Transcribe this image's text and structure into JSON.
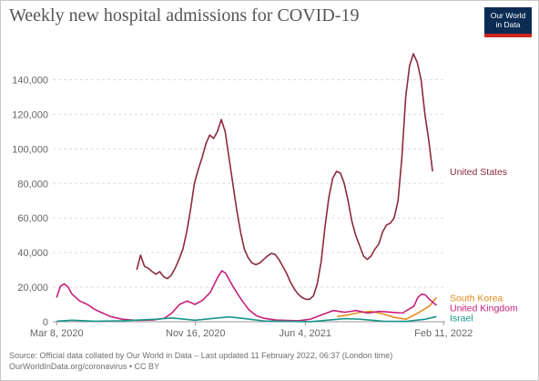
{
  "header": {
    "title": "Weekly new hospital admissions for COVID-19",
    "logo_line1": "Our World",
    "logo_line2": "in Data"
  },
  "footer": {
    "source_line1": "Source: Official data collated by Our World in Data – Last updated 11 February 2022, 06:37 (London time)",
    "source_line2": "OurWorldInData.org/coronavirus • CC BY"
  },
  "chart_data": {
    "type": "line",
    "title": "Weekly new hospital admissions for COVID-19",
    "xlabel": "",
    "ylabel": "",
    "x_range": [
      "2020-03-01",
      "2022-02-14"
    ],
    "ylim": [
      0,
      155000
    ],
    "y_ticks": [
      0,
      20000,
      40000,
      60000,
      80000,
      100000,
      120000,
      140000
    ],
    "y_tick_labels": [
      "0",
      "20,000",
      "40,000",
      "60,000",
      "80,000",
      "100,000",
      "120,000",
      "140,000"
    ],
    "x_ticks": [
      "2020-03-08",
      "2020-11-16",
      "2021-06-04",
      "2022-02-11"
    ],
    "x_tick_labels": [
      "Mar 8, 2020",
      "Nov 16, 2020",
      "Jun 4, 2021",
      "Feb 11, 2022"
    ],
    "grid": "horizontal dashed",
    "legend": "right, labels at line ends",
    "series": [
      {
        "name": "United States",
        "color": "#8c2a3e",
        "points": [
          [
            "2020-08-01",
            30000
          ],
          [
            "2020-08-08",
            38500
          ],
          [
            "2020-08-15",
            32000
          ],
          [
            "2020-08-22",
            31000
          ],
          [
            "2020-08-29",
            29000
          ],
          [
            "2020-09-05",
            27500
          ],
          [
            "2020-09-12",
            29000
          ],
          [
            "2020-09-19",
            26000
          ],
          [
            "2020-09-26",
            25000
          ],
          [
            "2020-10-03",
            27000
          ],
          [
            "2020-10-10",
            31000
          ],
          [
            "2020-10-17",
            36000
          ],
          [
            "2020-10-24",
            42000
          ],
          [
            "2020-10-31",
            52000
          ],
          [
            "2020-11-07",
            65000
          ],
          [
            "2020-11-14",
            80000
          ],
          [
            "2020-11-21",
            88000
          ],
          [
            "2020-11-28",
            95000
          ],
          [
            "2020-12-05",
            103000
          ],
          [
            "2020-12-12",
            108000
          ],
          [
            "2020-12-19",
            106000
          ],
          [
            "2020-12-26",
            110000
          ],
          [
            "2021-01-02",
            117000
          ],
          [
            "2021-01-09",
            110000
          ],
          [
            "2021-01-16",
            95000
          ],
          [
            "2021-01-23",
            80000
          ],
          [
            "2021-01-30",
            65000
          ],
          [
            "2021-02-06",
            52000
          ],
          [
            "2021-02-13",
            42000
          ],
          [
            "2021-02-20",
            37000
          ],
          [
            "2021-02-27",
            34000
          ],
          [
            "2021-03-06",
            33000
          ],
          [
            "2021-03-13",
            34000
          ],
          [
            "2021-03-20",
            36000
          ],
          [
            "2021-03-27",
            38000
          ],
          [
            "2021-04-03",
            39500
          ],
          [
            "2021-04-10",
            39000
          ],
          [
            "2021-04-17",
            36000
          ],
          [
            "2021-04-24",
            32000
          ],
          [
            "2021-05-01",
            28000
          ],
          [
            "2021-05-08",
            23000
          ],
          [
            "2021-05-15",
            19000
          ],
          [
            "2021-05-22",
            16000
          ],
          [
            "2021-05-29",
            14000
          ],
          [
            "2021-06-05",
            13000
          ],
          [
            "2021-06-12",
            13000
          ],
          [
            "2021-06-19",
            15000
          ],
          [
            "2021-06-26",
            22000
          ],
          [
            "2021-07-03",
            35000
          ],
          [
            "2021-07-10",
            55000
          ],
          [
            "2021-07-17",
            72000
          ],
          [
            "2021-07-24",
            83000
          ],
          [
            "2021-07-31",
            87000
          ],
          [
            "2021-08-07",
            86000
          ],
          [
            "2021-08-14",
            80000
          ],
          [
            "2021-08-21",
            70000
          ],
          [
            "2021-08-28",
            58000
          ],
          [
            "2021-09-04",
            50000
          ],
          [
            "2021-09-11",
            44000
          ],
          [
            "2021-09-18",
            38000
          ],
          [
            "2021-09-25",
            36000
          ],
          [
            "2021-10-02",
            38000
          ],
          [
            "2021-10-09",
            42000
          ],
          [
            "2021-10-16",
            45000
          ],
          [
            "2021-10-23",
            52000
          ],
          [
            "2021-10-30",
            56000
          ],
          [
            "2021-11-06",
            57000
          ],
          [
            "2021-11-13",
            60000
          ],
          [
            "2021-11-20",
            70000
          ],
          [
            "2021-11-27",
            95000
          ],
          [
            "2021-12-04",
            130000
          ],
          [
            "2021-12-11",
            148000
          ],
          [
            "2021-12-18",
            155000
          ],
          [
            "2021-12-25",
            150000
          ],
          [
            "2022-01-01",
            140000
          ],
          [
            "2022-01-08",
            120000
          ],
          [
            "2022-01-15",
            105000
          ],
          [
            "2022-01-22",
            87000
          ]
        ]
      },
      {
        "name": "South Korea",
        "color": "#e08b20",
        "points": [
          [
            "2021-08-01",
            3000
          ],
          [
            "2021-08-22",
            4000
          ],
          [
            "2021-09-12",
            5500
          ],
          [
            "2021-10-03",
            6000
          ],
          [
            "2021-10-24",
            4500
          ],
          [
            "2021-11-14",
            2500
          ],
          [
            "2021-12-05",
            1500
          ],
          [
            "2021-12-26",
            5000
          ],
          [
            "2022-01-16",
            9000
          ],
          [
            "2022-01-29",
            14000
          ]
        ]
      },
      {
        "name": "United Kingdom",
        "color": "#c71f79",
        "points": [
          [
            "2020-03-08",
            14000
          ],
          [
            "2020-03-15",
            20500
          ],
          [
            "2020-03-22",
            22000
          ],
          [
            "2020-03-29",
            20000
          ],
          [
            "2020-04-05",
            16000
          ],
          [
            "2020-04-19",
            12000
          ],
          [
            "2020-05-03",
            10000
          ],
          [
            "2020-05-17",
            7000
          ],
          [
            "2020-05-31",
            5000
          ],
          [
            "2020-06-14",
            3000
          ],
          [
            "2020-07-05",
            1500
          ],
          [
            "2020-08-02",
            800
          ],
          [
            "2020-08-30",
            1000
          ],
          [
            "2020-09-20",
            2000
          ],
          [
            "2020-10-04",
            5000
          ],
          [
            "2020-10-18",
            10000
          ],
          [
            "2020-11-01",
            12000
          ],
          [
            "2020-11-15",
            10000
          ],
          [
            "2020-11-29",
            12500
          ],
          [
            "2020-12-13",
            17000
          ],
          [
            "2020-12-27",
            26000
          ],
          [
            "2021-01-03",
            29500
          ],
          [
            "2021-01-10",
            28000
          ],
          [
            "2021-01-24",
            20000
          ],
          [
            "2021-02-07",
            13000
          ],
          [
            "2021-02-21",
            7000
          ],
          [
            "2021-03-07",
            3500
          ],
          [
            "2021-03-21",
            2000
          ],
          [
            "2021-04-11",
            1000
          ],
          [
            "2021-05-02",
            800
          ],
          [
            "2021-05-23",
            600
          ],
          [
            "2021-06-13",
            1500
          ],
          [
            "2021-07-04",
            4000
          ],
          [
            "2021-07-25",
            6500
          ],
          [
            "2021-08-15",
            5500
          ],
          [
            "2021-09-05",
            6500
          ],
          [
            "2021-09-26",
            5000
          ],
          [
            "2021-10-17",
            6000
          ],
          [
            "2021-11-07",
            5500
          ],
          [
            "2021-11-28",
            5000
          ],
          [
            "2021-12-19",
            9000
          ],
          [
            "2021-12-26",
            14000
          ],
          [
            "2022-01-02",
            16000
          ],
          [
            "2022-01-09",
            15500
          ],
          [
            "2022-01-16",
            13000
          ],
          [
            "2022-01-29",
            9500
          ]
        ]
      },
      {
        "name": "Israel",
        "color": "#19968c",
        "points": [
          [
            "2020-03-08",
            300
          ],
          [
            "2020-04-05",
            900
          ],
          [
            "2020-05-17",
            300
          ],
          [
            "2020-07-05",
            600
          ],
          [
            "2020-09-06",
            1500
          ],
          [
            "2020-10-04",
            2200
          ],
          [
            "2020-11-15",
            900
          ],
          [
            "2020-12-27",
            2200
          ],
          [
            "2021-01-17",
            2800
          ],
          [
            "2021-02-14",
            1800
          ],
          [
            "2021-03-21",
            400
          ],
          [
            "2021-06-13",
            50
          ],
          [
            "2021-08-15",
            1800
          ],
          [
            "2021-09-12",
            1500
          ],
          [
            "2021-10-24",
            300
          ],
          [
            "2021-12-05",
            200
          ],
          [
            "2022-01-09",
            1500
          ],
          [
            "2022-01-29",
            3000
          ]
        ]
      }
    ]
  }
}
